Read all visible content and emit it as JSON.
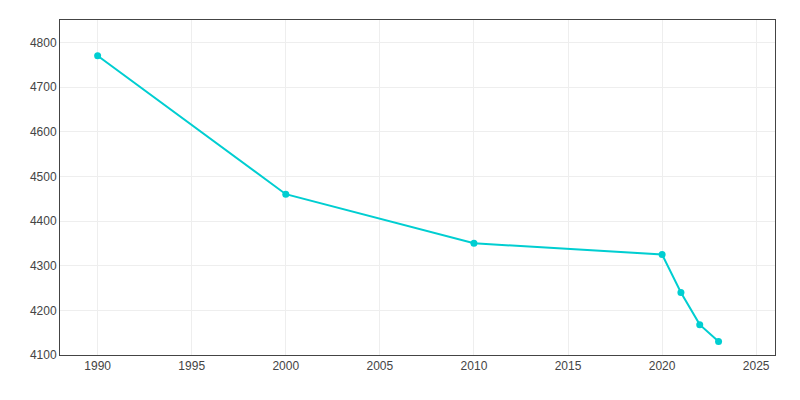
{
  "chart_data": {
    "type": "line",
    "x": [
      1990,
      2000,
      2010,
      2020,
      2021,
      2022,
      2023
    ],
    "values": [
      4770,
      4460,
      4350,
      4325,
      4240,
      4168,
      4130
    ],
    "color": "#00CED1",
    "marker": "circle",
    "xlim": [
      1988,
      2026
    ],
    "ylim": [
      4100,
      4850
    ],
    "xticks": [
      1990,
      1995,
      2000,
      2005,
      2010,
      2015,
      2020,
      2025
    ],
    "yticks": [
      4100,
      4200,
      4300,
      4400,
      4500,
      4600,
      4700,
      4800
    ],
    "grid": true
  }
}
